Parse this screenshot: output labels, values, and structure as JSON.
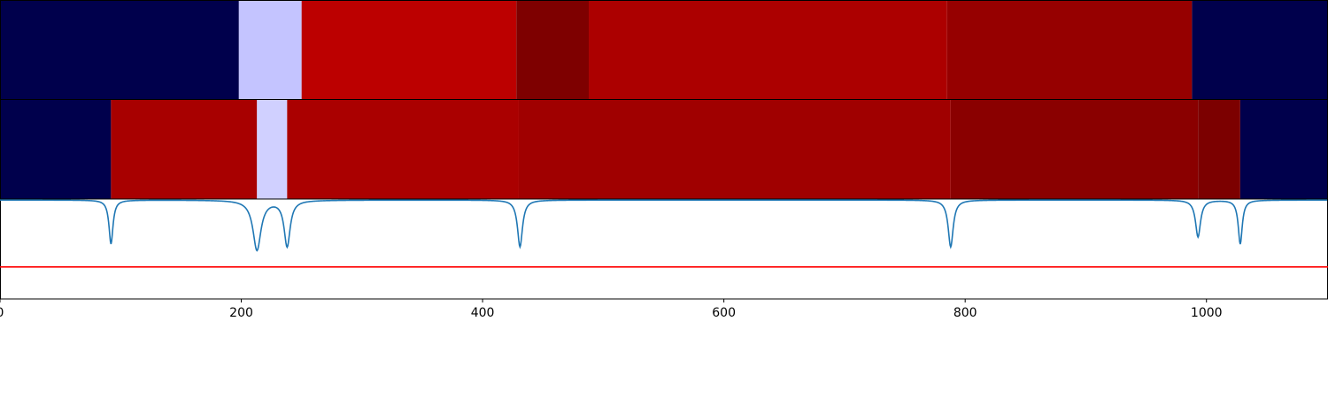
{
  "chart_data": [
    {
      "type": "heatmap",
      "panel": "top-segments",
      "xlim": [
        0,
        1100
      ],
      "segments": [
        {
          "start": 0,
          "end": 198,
          "color": "#00004c"
        },
        {
          "start": 198,
          "end": 250,
          "color": "#c4c4ff"
        },
        {
          "start": 250,
          "end": 428,
          "color": "#bc0000"
        },
        {
          "start": 428,
          "end": 488,
          "color": "#7e0000"
        },
        {
          "start": 488,
          "end": 785,
          "color": "#ac0000"
        },
        {
          "start": 785,
          "end": 988,
          "color": "#960000"
        },
        {
          "start": 988,
          "end": 1100,
          "color": "#00004c"
        }
      ]
    },
    {
      "type": "heatmap",
      "panel": "middle-segments",
      "xlim": [
        0,
        1100
      ],
      "segments": [
        {
          "start": 0,
          "end": 92,
          "color": "#00004c"
        },
        {
          "start": 92,
          "end": 213,
          "color": "#a80000"
        },
        {
          "start": 213,
          "end": 238,
          "color": "#d0d0ff"
        },
        {
          "start": 238,
          "end": 430,
          "color": "#aa0000"
        },
        {
          "start": 430,
          "end": 788,
          "color": "#a00000"
        },
        {
          "start": 788,
          "end": 993,
          "color": "#8a0000"
        },
        {
          "start": 993,
          "end": 1028,
          "color": "#7c0000"
        },
        {
          "start": 1028,
          "end": 1100,
          "color": "#00004c"
        }
      ]
    },
    {
      "type": "line",
      "panel": "signal",
      "xlim": [
        0,
        1100
      ],
      "ylim": [
        0,
        1
      ],
      "grid": false,
      "xticks": [
        "0",
        "200",
        "400",
        "600",
        "800",
        "1000"
      ],
      "xtick_values": [
        0,
        200,
        400,
        600,
        800,
        1000
      ],
      "baseline": 0.99,
      "dips": [
        {
          "x": 92,
          "depth": 0.44,
          "width": 2.0
        },
        {
          "x": 213,
          "depth": 0.5,
          "width": 4.0
        },
        {
          "x": 238,
          "depth": 0.46,
          "width": 3.0
        },
        {
          "x": 431,
          "depth": 0.47,
          "width": 2.5
        },
        {
          "x": 788,
          "depth": 0.47,
          "width": 2.5
        },
        {
          "x": 993,
          "depth": 0.37,
          "width": 2.5
        },
        {
          "x": 1028,
          "depth": 0.44,
          "width": 2.0
        }
      ],
      "threshold": 0.32,
      "series_color": "#1f77b4",
      "threshold_color": "#ff0000"
    }
  ]
}
